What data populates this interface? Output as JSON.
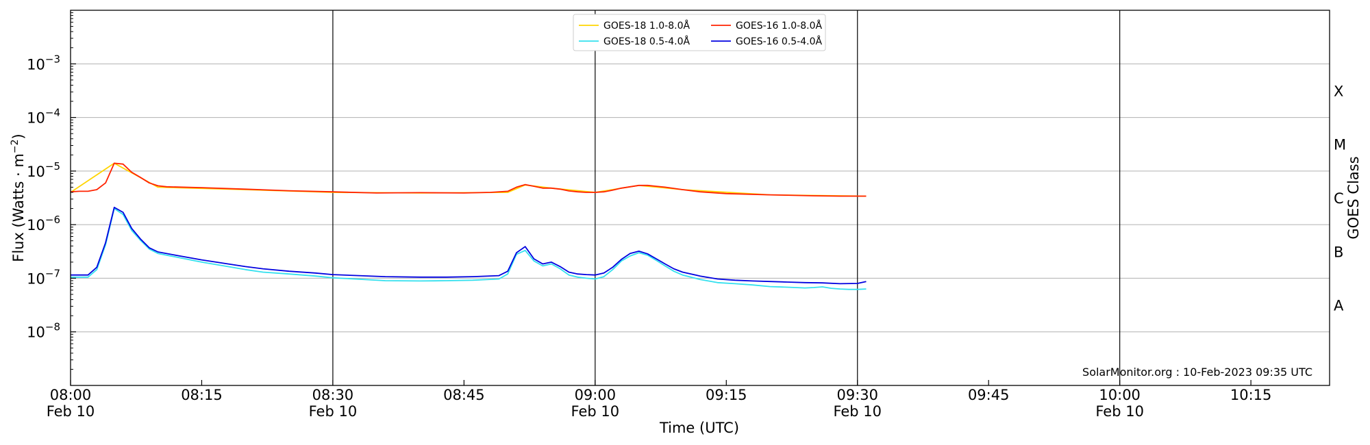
{
  "chart_data": {
    "type": "line",
    "title": "",
    "xlabel": "Time (UTC)",
    "ylabel": "Flux (Watts · m",
    "ylabel_sup": "−2",
    "ylabel_close": ")",
    "right_label": "GOES Class",
    "credit": "SolarMonitor.org : 10-Feb-2023 09:35 UTC",
    "y_scale": "log",
    "ylim": [
      1e-09,
      0.01
    ],
    "xlim": [
      "08:00",
      "10:24"
    ],
    "grid": "horizontal at each decade",
    "legend_position": "top-center",
    "x_ticks": [
      {
        "time": "08:00",
        "label": "08:00",
        "sub": "Feb 10"
      },
      {
        "time": "08:15",
        "label": "08:15",
        "sub": ""
      },
      {
        "time": "08:30",
        "label": "08:30",
        "sub": "Feb 10"
      },
      {
        "time": "08:45",
        "label": "08:45",
        "sub": ""
      },
      {
        "time": "09:00",
        "label": "09:00",
        "sub": "Feb 10"
      },
      {
        "time": "09:15",
        "label": "09:15",
        "sub": ""
      },
      {
        "time": "09:30",
        "label": "09:30",
        "sub": "Feb 10"
      },
      {
        "time": "09:45",
        "label": "09:45",
        "sub": ""
      },
      {
        "time": "10:00",
        "label": "10:00",
        "sub": "Feb 10"
      },
      {
        "time": "10:15",
        "label": "10:15",
        "sub": ""
      }
    ],
    "vertical_lines": [
      "08:30",
      "09:00",
      "09:30",
      "10:00"
    ],
    "y_ticks": [
      {
        "exp": -8,
        "label": "10",
        "sup": "−8"
      },
      {
        "exp": -7,
        "label": "10",
        "sup": "−7"
      },
      {
        "exp": -6,
        "label": "10",
        "sup": "−6"
      },
      {
        "exp": -5,
        "label": "10",
        "sup": "−5"
      },
      {
        "exp": -4,
        "label": "10",
        "sup": "−4"
      },
      {
        "exp": -3,
        "label": "10",
        "sup": "−3"
      }
    ],
    "goes_classes": [
      {
        "label": "A",
        "flux": 3.16e-08
      },
      {
        "label": "B",
        "flux": 3.16e-07
      },
      {
        "label": "C",
        "flux": 3.16e-06
      },
      {
        "label": "M",
        "flux": 3.16e-05
      },
      {
        "label": "X",
        "flux": 0.000316
      }
    ],
    "series": [
      {
        "name": "GOES-18 1.0-8.0Å",
        "color": "#ffd400",
        "x": [
          "08:00",
          "08:05",
          "08:10",
          "08:20",
          "08:30",
          "08:40",
          "08:50",
          "08:52",
          "08:55",
          "09:00",
          "09:05",
          "09:10",
          "09:20",
          "09:31"
        ],
        "values": [
          4e-06,
          1.4e-05,
          5e-06,
          4.5e-06,
          4e-06,
          3.9e-06,
          4e-06,
          5.5e-06,
          4.8e-06,
          4e-06,
          5.4e-06,
          4.5e-06,
          3.6e-06,
          3.4e-06
        ]
      },
      {
        "name": "GOES-18 0.5-4.0Å",
        "color": "#33e0ee",
        "x": [
          "08:00",
          "08:01",
          "08:02",
          "08:03",
          "08:04",
          "08:05",
          "08:06",
          "08:07",
          "08:08",
          "08:09",
          "08:10",
          "08:12",
          "08:15",
          "08:18",
          "08:20",
          "08:22",
          "08:25",
          "08:28",
          "08:30",
          "08:33",
          "08:36",
          "08:40",
          "08:43",
          "08:46",
          "08:49",
          "08:50",
          "08:51",
          "08:52",
          "08:53",
          "08:54",
          "08:55",
          "08:56",
          "08:57",
          "08:58",
          "08:59",
          "09:00",
          "09:01",
          "09:02",
          "09:03",
          "09:04",
          "09:05",
          "09:06",
          "09:07",
          "09:08",
          "09:09",
          "09:10",
          "09:12",
          "09:14",
          "09:16",
          "09:18",
          "09:20",
          "09:22",
          "09:24",
          "09:25",
          "09:26",
          "09:27",
          "09:28",
          "09:29",
          "09:30",
          "09:31"
        ],
        "values": [
          1.05e-07,
          1.05e-07,
          1.05e-07,
          1.45e-07,
          4.2e-07,
          2e-06,
          1.55e-06,
          7.8e-07,
          5.1e-07,
          3.5e-07,
          2.9e-07,
          2.5e-07,
          2e-07,
          1.65e-07,
          1.45e-07,
          1.3e-07,
          1.2e-07,
          1.1e-07,
          1.02e-07,
          9.6e-08,
          9e-08,
          8.9e-08,
          9e-08,
          9.2e-08,
          9.7e-08,
          1.2e-07,
          2.8e-07,
          3.3e-07,
          2.1e-07,
          1.7e-07,
          1.85e-07,
          1.5e-07,
          1.15e-07,
          1.05e-07,
          1e-07,
          9.7e-08,
          1.07e-07,
          1.45e-07,
          2.1e-07,
          2.6e-07,
          3e-07,
          2.7e-07,
          2.15e-07,
          1.7e-07,
          1.35e-07,
          1.15e-07,
          9.5e-08,
          8.3e-08,
          7.9e-08,
          7.5e-08,
          7e-08,
          6.8e-08,
          6.6e-08,
          6.7e-08,
          6.9e-08,
          6.5e-08,
          6.3e-08,
          6.2e-08,
          6.2e-08,
          6.3e-08
        ]
      },
      {
        "name": "GOES-16 1.0-8.0Å",
        "color": "#ff2200",
        "x": [
          "08:00",
          "08:01",
          "08:02",
          "08:03",
          "08:04",
          "08:05",
          "08:06",
          "08:07",
          "08:08",
          "08:09",
          "08:10",
          "08:11",
          "08:15",
          "08:20",
          "08:25",
          "08:30",
          "08:35",
          "08:40",
          "08:45",
          "08:48",
          "08:50",
          "08:51",
          "08:52",
          "08:53",
          "08:54",
          "08:55",
          "08:56",
          "08:57",
          "08:58",
          "08:59",
          "09:00",
          "09:01",
          "09:02",
          "09:03",
          "09:04",
          "09:05",
          "09:06",
          "09:07",
          "09:08",
          "09:10",
          "09:12",
          "09:15",
          "09:20",
          "09:25",
          "09:28",
          "09:30",
          "09:31"
        ],
        "values": [
          4.1e-06,
          4.2e-06,
          4.2e-06,
          4.5e-06,
          6e-06,
          1.4e-05,
          1.35e-05,
          9.5e-06,
          7.6e-06,
          6e-06,
          5.3e-06,
          5.1e-06,
          4.9e-06,
          4.6e-06,
          4.3e-06,
          4.1e-06,
          3.9e-06,
          3.95e-06,
          3.9e-06,
          4e-06,
          4.2e-06,
          5e-06,
          5.6e-06,
          5.2e-06,
          4.8e-06,
          4.8e-06,
          4.6e-06,
          4.25e-06,
          4.1e-06,
          4e-06,
          4e-06,
          4.1e-06,
          4.4e-06,
          4.8e-06,
          5.1e-06,
          5.4e-06,
          5.4e-06,
          5.2e-06,
          5e-06,
          4.5e-06,
          4.1e-06,
          3.8e-06,
          3.6e-06,
          3.45e-06,
          3.4e-06,
          3.4e-06,
          3.4e-06
        ]
      },
      {
        "name": "GOES-16 0.5-4.0Å",
        "color": "#0000e0",
        "x": [
          "08:00",
          "08:01",
          "08:02",
          "08:03",
          "08:04",
          "08:05",
          "08:06",
          "08:07",
          "08:08",
          "08:09",
          "08:10",
          "08:12",
          "08:15",
          "08:18",
          "08:20",
          "08:22",
          "08:25",
          "08:28",
          "08:30",
          "08:33",
          "08:36",
          "08:40",
          "08:43",
          "08:46",
          "08:49",
          "08:50",
          "08:51",
          "08:52",
          "08:53",
          "08:54",
          "08:55",
          "08:56",
          "08:57",
          "08:58",
          "08:59",
          "09:00",
          "09:01",
          "09:02",
          "09:03",
          "09:04",
          "09:05",
          "09:06",
          "09:07",
          "09:08",
          "09:09",
          "09:10",
          "09:12",
          "09:14",
          "09:16",
          "09:18",
          "09:20",
          "09:22",
          "09:24",
          "09:26",
          "09:28",
          "09:30",
          "09:31"
        ],
        "values": [
          1.15e-07,
          1.15e-07,
          1.15e-07,
          1.6e-07,
          4.6e-07,
          2.1e-06,
          1.7e-06,
          8.5e-07,
          5.4e-07,
          3.7e-07,
          3.1e-07,
          2.7e-07,
          2.2e-07,
          1.85e-07,
          1.65e-07,
          1.5e-07,
          1.35e-07,
          1.25e-07,
          1.17e-07,
          1.12e-07,
          1.07e-07,
          1.05e-07,
          1.05e-07,
          1.07e-07,
          1.12e-07,
          1.35e-07,
          3e-07,
          3.9e-07,
          2.3e-07,
          1.85e-07,
          2e-07,
          1.65e-07,
          1.3e-07,
          1.2e-07,
          1.17e-07,
          1.15e-07,
          1.25e-07,
          1.6e-07,
          2.25e-07,
          2.9e-07,
          3.2e-07,
          2.85e-07,
          2.3e-07,
          1.85e-07,
          1.5e-07,
          1.3e-07,
          1.1e-07,
          9.7e-08,
          9.2e-08,
          8.9e-08,
          8.7e-08,
          8.5e-08,
          8.3e-08,
          8.2e-08,
          7.9e-08,
          8e-08,
          8.7e-08
        ]
      }
    ]
  }
}
